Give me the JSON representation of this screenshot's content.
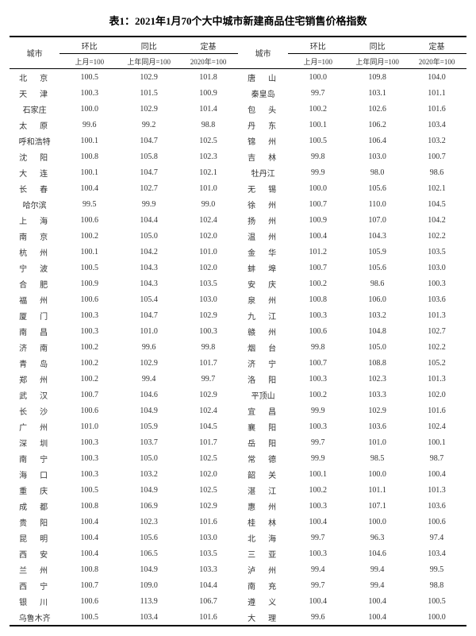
{
  "title": "表1：2021年1月70个大中城市新建商品住宅销售价格指数",
  "header": {
    "city": "城市",
    "huanbi": "环比",
    "tongbi": "同比",
    "dingji": "定基",
    "sub_prev_month": "上月=100",
    "sub_prev_year": "上年同月=100",
    "sub_base": "2020年=100"
  },
  "left": [
    {
      "c": "北　京",
      "v": [
        "100.5",
        "102.9",
        "101.8"
      ]
    },
    {
      "c": "天　津",
      "v": [
        "100.3",
        "101.5",
        "100.9"
      ]
    },
    {
      "c": "石家庄",
      "v": [
        "100.0",
        "102.9",
        "101.4"
      ]
    },
    {
      "c": "太　原",
      "v": [
        "99.6",
        "99.2",
        "98.8"
      ]
    },
    {
      "c": "呼和浩特",
      "v": [
        "100.1",
        "104.7",
        "102.5"
      ]
    },
    {
      "c": "沈　阳",
      "v": [
        "100.8",
        "105.8",
        "102.3"
      ]
    },
    {
      "c": "大　连",
      "v": [
        "100.1",
        "104.7",
        "102.1"
      ]
    },
    {
      "c": "长　春",
      "v": [
        "100.4",
        "102.7",
        "101.0"
      ]
    },
    {
      "c": "哈尔滨",
      "v": [
        "99.5",
        "99.9",
        "99.0"
      ]
    },
    {
      "c": "上　海",
      "v": [
        "100.6",
        "104.4",
        "102.4"
      ]
    },
    {
      "c": "南　京",
      "v": [
        "100.2",
        "105.0",
        "102.0"
      ]
    },
    {
      "c": "杭　州",
      "v": [
        "100.1",
        "104.2",
        "101.0"
      ]
    },
    {
      "c": "宁　波",
      "v": [
        "100.5",
        "104.3",
        "102.0"
      ]
    },
    {
      "c": "合　肥",
      "v": [
        "100.9",
        "104.3",
        "103.5"
      ]
    },
    {
      "c": "福　州",
      "v": [
        "100.6",
        "105.4",
        "103.0"
      ]
    },
    {
      "c": "厦　门",
      "v": [
        "100.3",
        "104.7",
        "102.9"
      ]
    },
    {
      "c": "南　昌",
      "v": [
        "100.3",
        "101.0",
        "100.3"
      ]
    },
    {
      "c": "济　南",
      "v": [
        "100.2",
        "99.6",
        "99.8"
      ]
    },
    {
      "c": "青　岛",
      "v": [
        "100.2",
        "102.9",
        "101.7"
      ]
    },
    {
      "c": "郑　州",
      "v": [
        "100.2",
        "99.4",
        "99.7"
      ]
    },
    {
      "c": "武　汉",
      "v": [
        "100.7",
        "104.6",
        "102.9"
      ]
    },
    {
      "c": "长　沙",
      "v": [
        "100.6",
        "104.9",
        "102.4"
      ]
    },
    {
      "c": "广　州",
      "v": [
        "101.0",
        "105.9",
        "104.5"
      ]
    },
    {
      "c": "深　圳",
      "v": [
        "100.3",
        "103.7",
        "101.7"
      ]
    },
    {
      "c": "南　宁",
      "v": [
        "100.3",
        "105.0",
        "102.5"
      ]
    },
    {
      "c": "海　口",
      "v": [
        "100.3",
        "103.2",
        "102.0"
      ]
    },
    {
      "c": "重　庆",
      "v": [
        "100.5",
        "104.9",
        "102.5"
      ]
    },
    {
      "c": "成　都",
      "v": [
        "100.8",
        "106.9",
        "102.9"
      ]
    },
    {
      "c": "贵　阳",
      "v": [
        "100.4",
        "102.3",
        "101.6"
      ]
    },
    {
      "c": "昆　明",
      "v": [
        "100.4",
        "105.6",
        "103.0"
      ]
    },
    {
      "c": "西　安",
      "v": [
        "100.4",
        "106.5",
        "103.5"
      ]
    },
    {
      "c": "兰　州",
      "v": [
        "100.8",
        "104.9",
        "103.3"
      ]
    },
    {
      "c": "西　宁",
      "v": [
        "100.7",
        "109.0",
        "104.4"
      ]
    },
    {
      "c": "银　川",
      "v": [
        "100.6",
        "113.9",
        "106.7"
      ]
    },
    {
      "c": "乌鲁木齐",
      "v": [
        "100.5",
        "103.4",
        "101.6"
      ]
    }
  ],
  "right": [
    {
      "c": "唐　山",
      "v": [
        "100.0",
        "109.8",
        "104.0"
      ]
    },
    {
      "c": "秦皇岛",
      "v": [
        "99.7",
        "103.1",
        "101.1"
      ]
    },
    {
      "c": "包　头",
      "v": [
        "100.2",
        "102.6",
        "101.6"
      ]
    },
    {
      "c": "丹　东",
      "v": [
        "100.1",
        "106.2",
        "103.4"
      ]
    },
    {
      "c": "锦　州",
      "v": [
        "100.5",
        "106.4",
        "103.2"
      ]
    },
    {
      "c": "吉　林",
      "v": [
        "99.8",
        "103.0",
        "100.7"
      ]
    },
    {
      "c": "牡丹江",
      "v": [
        "99.9",
        "98.0",
        "98.6"
      ]
    },
    {
      "c": "无　锡",
      "v": [
        "100.0",
        "105.6",
        "102.1"
      ]
    },
    {
      "c": "徐　州",
      "v": [
        "100.7",
        "110.0",
        "104.5"
      ]
    },
    {
      "c": "扬　州",
      "v": [
        "100.9",
        "107.0",
        "104.2"
      ]
    },
    {
      "c": "温　州",
      "v": [
        "100.4",
        "104.3",
        "102.2"
      ]
    },
    {
      "c": "金　华",
      "v": [
        "101.2",
        "105.9",
        "103.5"
      ]
    },
    {
      "c": "蚌　埠",
      "v": [
        "100.7",
        "105.6",
        "103.0"
      ]
    },
    {
      "c": "安　庆",
      "v": [
        "100.2",
        "98.6",
        "100.3"
      ]
    },
    {
      "c": "泉　州",
      "v": [
        "100.8",
        "106.0",
        "103.6"
      ]
    },
    {
      "c": "九　江",
      "v": [
        "100.3",
        "103.2",
        "101.3"
      ]
    },
    {
      "c": "赣　州",
      "v": [
        "100.6",
        "104.8",
        "102.7"
      ]
    },
    {
      "c": "烟　台",
      "v": [
        "99.8",
        "105.0",
        "102.2"
      ]
    },
    {
      "c": "济　宁",
      "v": [
        "100.7",
        "108.8",
        "105.2"
      ]
    },
    {
      "c": "洛　阳",
      "v": [
        "100.3",
        "102.3",
        "101.3"
      ]
    },
    {
      "c": "平顶山",
      "v": [
        "100.2",
        "103.3",
        "102.0"
      ]
    },
    {
      "c": "宜　昌",
      "v": [
        "99.9",
        "102.9",
        "101.6"
      ]
    },
    {
      "c": "襄　阳",
      "v": [
        "100.3",
        "103.6",
        "102.4"
      ]
    },
    {
      "c": "岳　阳",
      "v": [
        "99.7",
        "101.0",
        "100.1"
      ]
    },
    {
      "c": "常　德",
      "v": [
        "99.9",
        "98.5",
        "98.7"
      ]
    },
    {
      "c": "韶　关",
      "v": [
        "100.1",
        "100.0",
        "100.4"
      ]
    },
    {
      "c": "湛　江",
      "v": [
        "100.2",
        "101.1",
        "101.3"
      ]
    },
    {
      "c": "惠　州",
      "v": [
        "100.3",
        "107.1",
        "103.6"
      ]
    },
    {
      "c": "桂　林",
      "v": [
        "100.4",
        "100.0",
        "100.6"
      ]
    },
    {
      "c": "北　海",
      "v": [
        "99.7",
        "96.3",
        "97.4"
      ]
    },
    {
      "c": "三　亚",
      "v": [
        "100.3",
        "104.6",
        "103.4"
      ]
    },
    {
      "c": "泸　州",
      "v": [
        "99.4",
        "99.4",
        "99.5"
      ]
    },
    {
      "c": "南　充",
      "v": [
        "99.7",
        "99.4",
        "98.8"
      ]
    },
    {
      "c": "遵　义",
      "v": [
        "100.4",
        "100.4",
        "100.5"
      ]
    },
    {
      "c": "大　理",
      "v": [
        "99.6",
        "100.4",
        "100.0"
      ]
    }
  ]
}
